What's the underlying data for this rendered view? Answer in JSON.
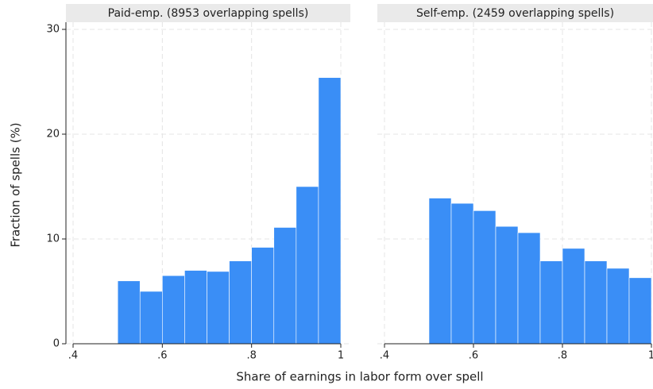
{
  "chart_data": {
    "type": "histogram",
    "y_label": "Fraction of spells (%)",
    "x_label": "Share of earnings in labor form over spell",
    "bins": [
      0.5,
      0.55,
      0.6,
      0.65,
      0.7,
      0.75,
      0.8,
      0.85,
      0.9,
      0.95,
      1
    ],
    "color": "#3a8ef6",
    "grid": true,
    "ylim": [
      0,
      30
    ],
    "yticks": [
      0,
      10,
      20,
      30
    ],
    "xlim": [
      0.4,
      1
    ],
    "xticks": [
      {
        "value": 0.4,
        "label": ".4"
      },
      {
        "value": 0.6,
        "label": ".6"
      },
      {
        "value": 0.8,
        "label": ".8"
      },
      1
    ],
    "panels": [
      {
        "title": "Paid-emp. (8953 overlapping spells)",
        "values": [
          6.0,
          5.0,
          6.5,
          7.0,
          6.9,
          7.9,
          9.2,
          11.1,
          15.0,
          25.4
        ]
      },
      {
        "title": "Self-emp. (2459 overlapping spells)",
        "values": [
          13.9,
          13.4,
          12.7,
          11.2,
          10.6,
          7.9,
          9.1,
          7.9,
          7.2,
          6.3
        ]
      }
    ]
  }
}
